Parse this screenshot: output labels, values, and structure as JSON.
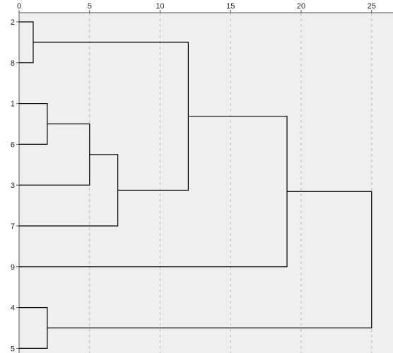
{
  "chart_data": {
    "type": "dendrogram",
    "orientation": "horizontal",
    "x_ticks": [
      0,
      5,
      10,
      15,
      20,
      25
    ],
    "x_tick_labels": [
      "0",
      "5",
      "10",
      "15",
      "20",
      "25"
    ],
    "xlim": [
      0,
      25
    ],
    "grid": "vertical dashed at x ticks",
    "leaves": [
      "2",
      "8",
      "1",
      "6",
      "3",
      "7",
      "9",
      "4",
      "5"
    ],
    "merges": [
      {
        "a": "2",
        "b": "8",
        "height": 1
      },
      {
        "a": "1",
        "b": "6",
        "height": 2
      },
      {
        "a": "4",
        "b": "5",
        "height": 2
      },
      {
        "a": "(1,6)",
        "b": "3",
        "height": 5
      },
      {
        "a": "(1,6,3)",
        "b": "7",
        "height": 7
      },
      {
        "a": "(2,8)",
        "b": "(1,6,3,7)",
        "height": 12
      },
      {
        "a": "(2,8,1,6,3,7)",
        "b": "9",
        "height": 19
      },
      {
        "a": "(2,8,1,6,3,7,9)",
        "b": "(4,5)",
        "height": 25
      }
    ],
    "colors": {
      "plot_background": "#efefef",
      "line": "#000000",
      "grid": "#bdbdbd"
    }
  }
}
